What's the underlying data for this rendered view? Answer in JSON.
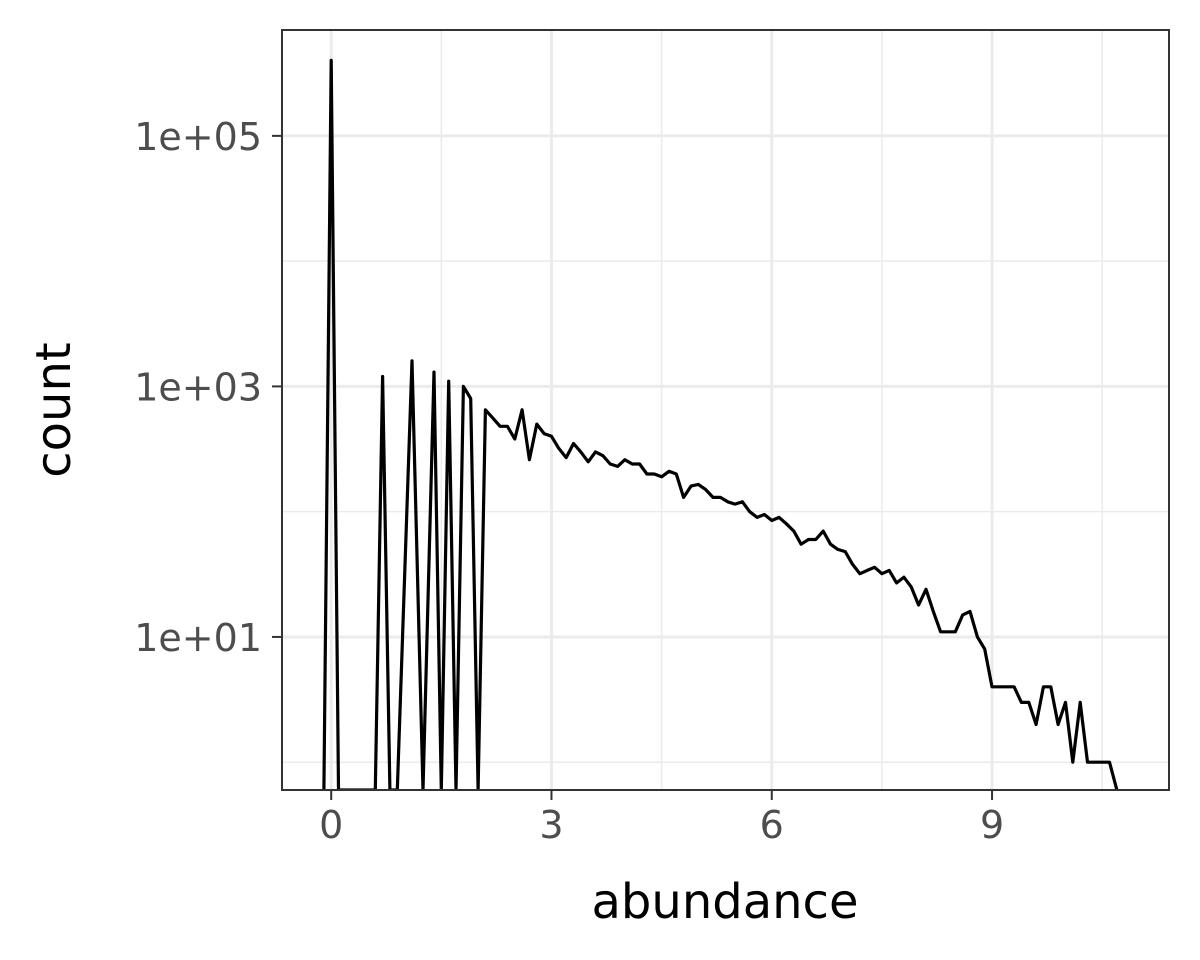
{
  "chart_data": {
    "type": "line",
    "xlabel": "abundance",
    "ylabel": "count",
    "y_scale": "log10",
    "grid": true,
    "legend": "none",
    "xlim": [
      -0.67,
      11.41
    ],
    "ylim": [
      0.6,
      700000
    ],
    "x_ticks": [
      {
        "value": 0,
        "label": "0"
      },
      {
        "value": 3,
        "label": "3"
      },
      {
        "value": 6,
        "label": "6"
      },
      {
        "value": 9,
        "label": "9"
      }
    ],
    "y_ticks": [
      {
        "value": 10,
        "label": "1e+01"
      },
      {
        "value": 1000,
        "label": "1e+03"
      },
      {
        "value": 100000,
        "label": "1e+05"
      }
    ],
    "y_minor": [
      1,
      100,
      10000
    ],
    "colors": {
      "line": "#000000",
      "grid": "#ebebeb",
      "panel_border": "#333333",
      "tick": "#333333"
    },
    "series": [
      {
        "x": [
          -0.1,
          0,
          0.1,
          0.6,
          0.7,
          0.8,
          0.9,
          1.1,
          1.25,
          1.4,
          1.5,
          1.6,
          1.7,
          1.8,
          1.9,
          2.0,
          2.1,
          2.2,
          2.3,
          2.4,
          2.5,
          2.6,
          2.7,
          2.8,
          2.9,
          3.0,
          3.1,
          3.2,
          3.3,
          3.4,
          3.5,
          3.6,
          3.7,
          3.8,
          3.9,
          4.0,
          4.1,
          4.2,
          4.3,
          4.4,
          4.5,
          4.6,
          4.7,
          4.8,
          4.9,
          5.0,
          5.1,
          5.2,
          5.3,
          5.4,
          5.5,
          5.6,
          5.7,
          5.8,
          5.9,
          6.0,
          6.1,
          6.2,
          6.3,
          6.4,
          6.5,
          6.6,
          6.7,
          6.8,
          6.9,
          7.0,
          7.1,
          7.2,
          7.3,
          7.4,
          7.5,
          7.6,
          7.7,
          7.8,
          7.9,
          8.0,
          8.1,
          8.2,
          8.3,
          8.4,
          8.5,
          8.6,
          8.7,
          8.8,
          8.9,
          9.0,
          9.1,
          9.2,
          9.3,
          9.4,
          9.5,
          9.6,
          9.7,
          9.8,
          9.9,
          10.0,
          10.1,
          10.2,
          10.3,
          10.4,
          10.5,
          10.6,
          10.7
        ],
        "y": [
          0.6,
          400000,
          0.6,
          0.6,
          1200,
          0.6,
          0.6,
          1600,
          0.6,
          1300,
          0.6,
          1100,
          0.6,
          1000,
          800,
          0.6,
          650,
          560,
          480,
          480,
          380,
          650,
          260,
          500,
          420,
          400,
          320,
          270,
          350,
          300,
          250,
          300,
          280,
          240,
          230,
          260,
          240,
          240,
          200,
          200,
          190,
          210,
          200,
          130,
          160,
          165,
          150,
          130,
          130,
          120,
          115,
          120,
          100,
          90,
          95,
          85,
          90,
          80,
          70,
          55,
          60,
          60,
          70,
          55,
          50,
          48,
          38,
          32,
          34,
          36,
          32,
          34,
          27,
          30,
          25,
          18,
          24,
          16,
          11,
          11,
          11,
          15,
          16,
          10,
          8,
          4,
          4,
          4,
          4,
          3,
          3,
          2,
          4,
          4,
          2,
          3,
          1,
          3,
          1,
          1,
          1,
          1,
          0.6
        ]
      }
    ]
  }
}
